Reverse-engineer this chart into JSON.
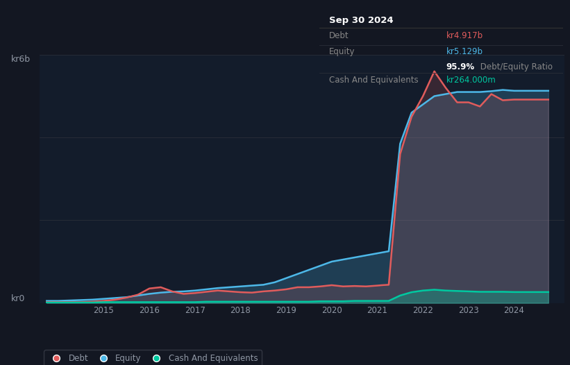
{
  "bg_color": "#131722",
  "plot_bg_color": "#131c2b",
  "grid_color": "#2a2e39",
  "debt_color": "#e05c5c",
  "equity_color": "#4db8e8",
  "cash_color": "#00c8a0",
  "ylabel_text": "kr6b",
  "y0_label": "kr0",
  "x_ticks": [
    2015,
    2016,
    2017,
    2018,
    2019,
    2020,
    2021,
    2022,
    2023,
    2024
  ],
  "tooltip_title": "Sep 30 2024",
  "tooltip_debt_label": "Debt",
  "tooltip_debt_val": "kr4.917b",
  "tooltip_equity_label": "Equity",
  "tooltip_equity_val": "kr5.129b",
  "tooltip_ratio_bold": "95.9%",
  "tooltip_ratio_rest": " Debt/Equity Ratio",
  "tooltip_cash_label": "Cash And Equivalents",
  "tooltip_cash_val": "kr264.000m",
  "legend_items": [
    "Debt",
    "Equity",
    "Cash And Equivalents"
  ],
  "years": [
    2013.75,
    2014.0,
    2014.25,
    2014.5,
    2014.75,
    2015.0,
    2015.25,
    2015.5,
    2015.75,
    2016.0,
    2016.25,
    2016.5,
    2016.75,
    2017.0,
    2017.25,
    2017.5,
    2017.75,
    2018.0,
    2018.25,
    2018.5,
    2018.75,
    2019.0,
    2019.25,
    2019.5,
    2019.75,
    2020.0,
    2020.25,
    2020.5,
    2020.75,
    2021.0,
    2021.1,
    2021.25,
    2021.5,
    2021.75,
    2022.0,
    2022.25,
    2022.5,
    2022.75,
    2023.0,
    2023.25,
    2023.5,
    2023.75,
    2024.0,
    2024.25,
    2024.5,
    2024.75
  ],
  "debt": [
    0.02,
    0.02,
    0.02,
    0.02,
    0.03,
    0.05,
    0.08,
    0.13,
    0.2,
    0.35,
    0.38,
    0.28,
    0.22,
    0.24,
    0.27,
    0.3,
    0.28,
    0.26,
    0.25,
    0.28,
    0.3,
    0.33,
    0.38,
    0.38,
    0.4,
    0.43,
    0.4,
    0.41,
    0.4,
    0.42,
    0.43,
    0.44,
    3.6,
    4.5,
    5.0,
    5.6,
    5.2,
    4.85,
    4.85,
    4.75,
    5.05,
    4.9,
    4.917,
    4.917,
    4.917,
    4.917
  ],
  "equity": [
    0.05,
    0.05,
    0.06,
    0.07,
    0.08,
    0.1,
    0.12,
    0.14,
    0.18,
    0.22,
    0.25,
    0.27,
    0.28,
    0.3,
    0.33,
    0.36,
    0.38,
    0.4,
    0.42,
    0.44,
    0.5,
    0.6,
    0.7,
    0.8,
    0.9,
    1.0,
    1.05,
    1.1,
    1.15,
    1.2,
    1.22,
    1.25,
    3.85,
    4.6,
    4.8,
    5.0,
    5.05,
    5.1,
    5.1,
    5.1,
    5.12,
    5.15,
    5.129,
    5.129,
    5.129,
    5.129
  ],
  "cash": [
    0.01,
    0.01,
    0.01,
    0.01,
    0.01,
    0.02,
    0.02,
    0.02,
    0.02,
    0.02,
    0.02,
    0.02,
    0.02,
    0.02,
    0.03,
    0.03,
    0.03,
    0.03,
    0.03,
    0.03,
    0.03,
    0.03,
    0.03,
    0.03,
    0.04,
    0.04,
    0.04,
    0.05,
    0.05,
    0.05,
    0.05,
    0.05,
    0.18,
    0.26,
    0.3,
    0.32,
    0.3,
    0.29,
    0.28,
    0.27,
    0.27,
    0.27,
    0.264,
    0.264,
    0.264,
    0.264
  ],
  "ylim": [
    0,
    6.0
  ],
  "xlim": [
    2013.6,
    2025.1
  ]
}
